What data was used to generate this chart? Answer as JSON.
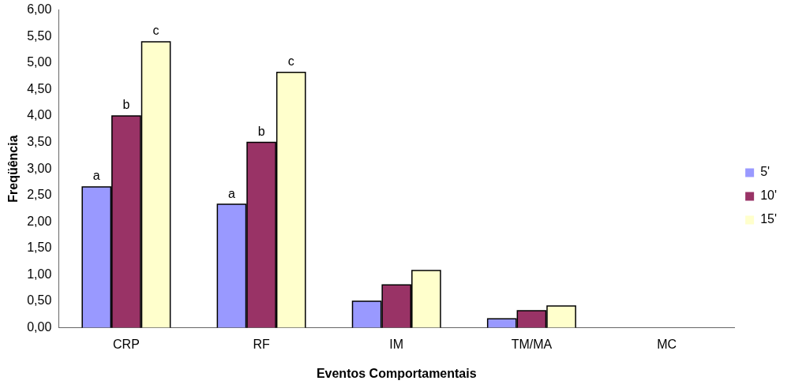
{
  "chart_data": {
    "type": "bar",
    "xlabel": "Eventos Comportamentais",
    "ylabel": "Freqüência",
    "categories": [
      "CRP",
      "RF",
      "IM",
      "TM/MA",
      "MC"
    ],
    "series": [
      {
        "name": "5'",
        "color": "#9999ff",
        "values": [
          2.66,
          2.33,
          0.5,
          0.17,
          0
        ]
      },
      {
        "name": "10'",
        "color": "#993366",
        "values": [
          4.0,
          3.5,
          0.81,
          0.32,
          0
        ]
      },
      {
        "name": "15'",
        "color": "#ffffcc",
        "values": [
          5.4,
          4.82,
          1.08,
          0.41,
          0
        ]
      }
    ],
    "ylim": [
      0,
      6
    ],
    "yticks": [
      {
        "value": 0,
        "label": "0,00"
      },
      {
        "value": 0.5,
        "label": "0,50"
      },
      {
        "value": 1,
        "label": "1,00"
      },
      {
        "value": 1.5,
        "label": "1,50"
      },
      {
        "value": 2,
        "label": "2,00"
      },
      {
        "value": 2.5,
        "label": "2,50"
      },
      {
        "value": 3,
        "label": "3,00"
      },
      {
        "value": 3.5,
        "label": "3,50"
      },
      {
        "value": 4,
        "label": "4,00"
      },
      {
        "value": 4.5,
        "label": "4,50"
      },
      {
        "value": 5,
        "label": "5,00"
      },
      {
        "value": 5.5,
        "label": "5,50"
      },
      {
        "value": 6,
        "label": "6,00"
      }
    ],
    "annotations": [
      "a",
      "b",
      "c",
      "a",
      "b",
      "c"
    ],
    "grid": false,
    "legend": "right"
  }
}
